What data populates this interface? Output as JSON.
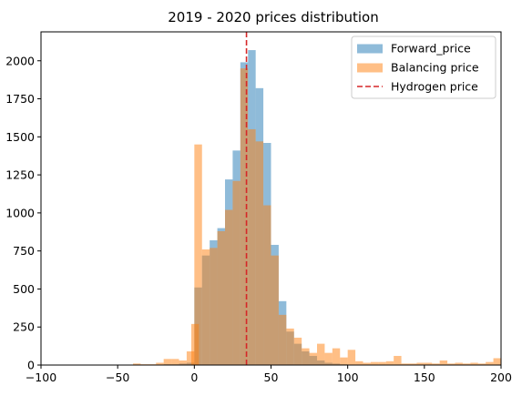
{
  "chart_data": {
    "type": "bar",
    "title": "2019 - 2020 prices distribution",
    "xlabel": "",
    "ylabel": "",
    "xlim": [
      -100,
      200
    ],
    "ylim": [
      0,
      2190
    ],
    "x_ticks": [
      -100,
      -50,
      0,
      50,
      100,
      150,
      200
    ],
    "y_ticks": [
      0,
      250,
      500,
      750,
      1000,
      1250,
      1500,
      1750,
      2000
    ],
    "grid": false,
    "legend_position": "top-right",
    "bin_width": 5,
    "series": [
      {
        "name": "Forward_price",
        "kind": "histogram",
        "color": "#1f77b4",
        "opacity": 0.5,
        "bins": [
          [
            -20,
            5
          ],
          [
            -15,
            5
          ],
          [
            -10,
            10
          ],
          [
            -5,
            15
          ],
          [
            0,
            510
          ],
          [
            5,
            720
          ],
          [
            10,
            820
          ],
          [
            15,
            900
          ],
          [
            20,
            1220
          ],
          [
            25,
            1410
          ],
          [
            30,
            1990
          ],
          [
            35,
            2070
          ],
          [
            40,
            1820
          ],
          [
            45,
            1460
          ],
          [
            50,
            790
          ],
          [
            55,
            420
          ],
          [
            60,
            220
          ],
          [
            65,
            140
          ],
          [
            70,
            90
          ],
          [
            75,
            60
          ],
          [
            80,
            30
          ],
          [
            85,
            15
          ],
          [
            90,
            10
          ],
          [
            95,
            5
          ]
        ]
      },
      {
        "name": "Balancing price",
        "kind": "histogram",
        "color": "#ff7f0e",
        "opacity": 0.5,
        "bins": [
          [
            -40,
            10
          ],
          [
            -35,
            5
          ],
          [
            -30,
            5
          ],
          [
            -25,
            15
          ],
          [
            -20,
            40
          ],
          [
            -15,
            40
          ],
          [
            -10,
            30
          ],
          [
            -5,
            90
          ],
          [
            -2,
            270
          ],
          [
            0,
            1450
          ],
          [
            5,
            760
          ],
          [
            10,
            770
          ],
          [
            15,
            880
          ],
          [
            20,
            1020
          ],
          [
            25,
            1210
          ],
          [
            30,
            1950
          ],
          [
            35,
            1550
          ],
          [
            40,
            1470
          ],
          [
            45,
            1050
          ],
          [
            50,
            720
          ],
          [
            55,
            330
          ],
          [
            60,
            240
          ],
          [
            65,
            180
          ],
          [
            70,
            110
          ],
          [
            75,
            80
          ],
          [
            80,
            140
          ],
          [
            85,
            80
          ],
          [
            90,
            110
          ],
          [
            95,
            50
          ],
          [
            100,
            100
          ],
          [
            105,
            25
          ],
          [
            110,
            15
          ],
          [
            115,
            20
          ],
          [
            120,
            20
          ],
          [
            125,
            25
          ],
          [
            130,
            60
          ],
          [
            135,
            10
          ],
          [
            140,
            10
          ],
          [
            145,
            15
          ],
          [
            150,
            15
          ],
          [
            155,
            10
          ],
          [
            160,
            30
          ],
          [
            165,
            10
          ],
          [
            170,
            15
          ],
          [
            175,
            10
          ],
          [
            180,
            15
          ],
          [
            185,
            10
          ],
          [
            190,
            20
          ],
          [
            195,
            45
          ]
        ]
      },
      {
        "name": "Hydrogen price",
        "kind": "vline",
        "color": "#d62728",
        "x": 34
      }
    ]
  }
}
